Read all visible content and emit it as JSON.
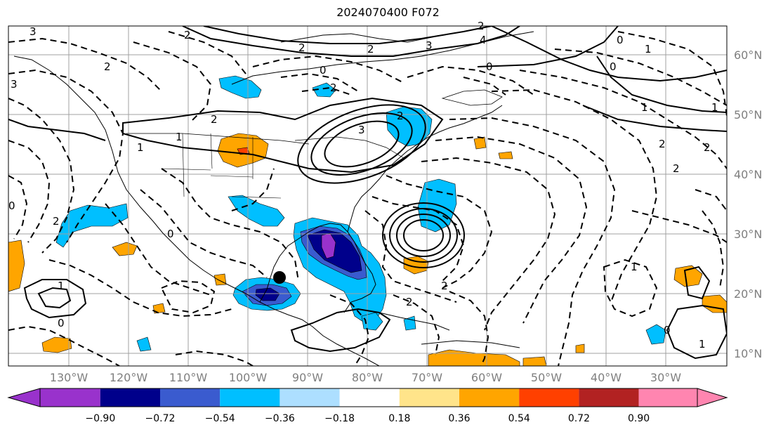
{
  "title": "2024070400 F072",
  "longitude_labels": [
    "130°W",
    "120°W",
    "110°W",
    "100°W",
    "90°W",
    "80°W",
    "70°W",
    "60°W",
    "50°W",
    "40°W",
    "30°W"
  ],
  "latitude_labels": [
    "60°N",
    "50°N",
    "40°N",
    "30°N",
    "20°N",
    "10°N"
  ],
  "contour_labels": [
    "3",
    "2",
    "2",
    "2",
    "3",
    "2",
    "4",
    "0",
    "0",
    "0",
    "1",
    "1",
    "1",
    "2",
    "2",
    "2",
    "2",
    "3",
    "3",
    "2",
    "0",
    "1",
    "1",
    "2",
    "2",
    "2",
    "0",
    "1",
    "0",
    "0",
    "1",
    "2",
    "2",
    "1",
    "0"
  ],
  "colorbar": {
    "colors": [
      "#9932CC",
      "#00008B",
      "#3A5BCF",
      "#00BFFF",
      "#ADDFFF",
      "#FFFFFF",
      "#FFE48A",
      "#FFA500",
      "#FF4000",
      "#B22222",
      "#FF85B0"
    ],
    "under_color": "#9932CC",
    "over_color": "#FF85B0",
    "ticks": [
      "−0.90",
      "−0.72",
      "−0.54",
      "−0.36",
      "−0.18",
      "0.18",
      "0.36",
      "0.54",
      "0.72",
      "0.90"
    ]
  },
  "marker": {
    "color": "#000000",
    "lon": "94°W",
    "lat": "23°N"
  }
}
